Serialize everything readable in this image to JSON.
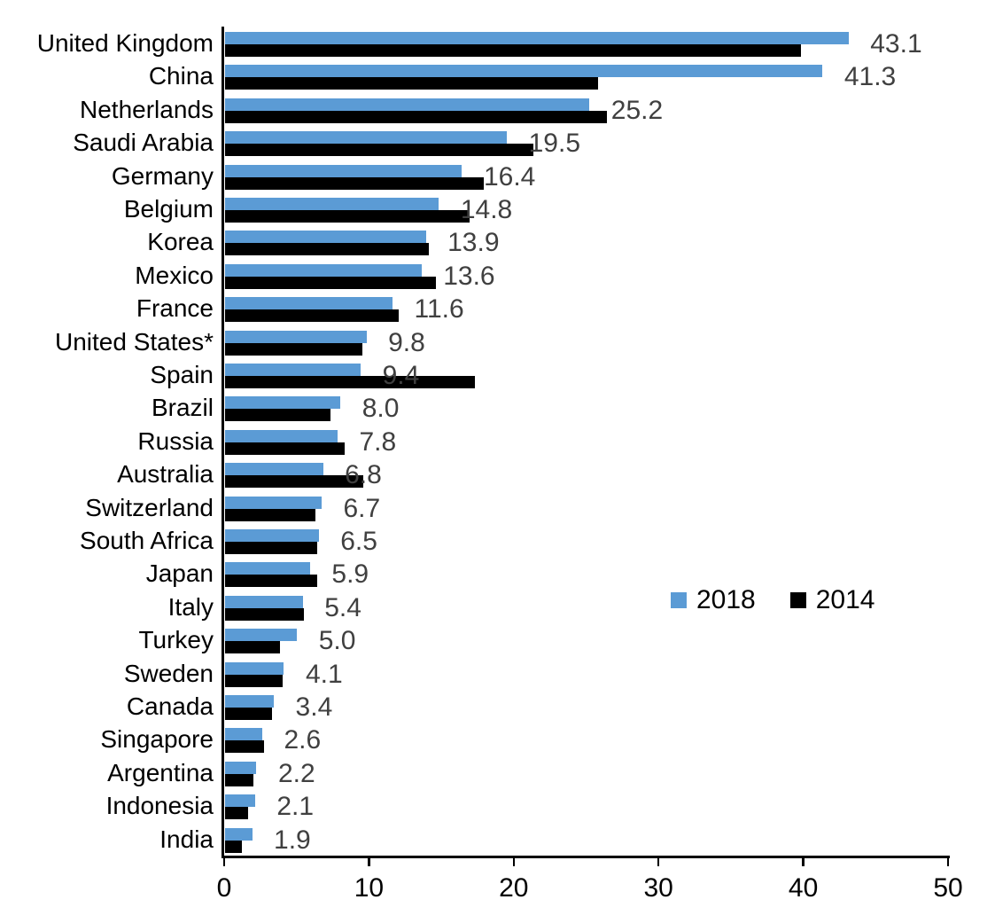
{
  "chart_data": {
    "type": "bar",
    "orientation": "horizontal",
    "title": "",
    "xlabel": "",
    "ylabel": "",
    "xlim": [
      0,
      50
    ],
    "x_ticks": [
      0,
      10,
      20,
      30,
      40,
      50
    ],
    "grid": false,
    "legend_position": "middle-right",
    "data_label_series": "2018",
    "data_label_color": "#404040",
    "categories": [
      "United Kingdom",
      "China",
      "Netherlands",
      "Saudi Arabia",
      "Germany",
      "Belgium",
      "Korea",
      "Mexico",
      "France",
      "United States*",
      "Spain",
      "Brazil",
      "Russia",
      "Australia",
      "Switzerland",
      "South Africa",
      "Japan",
      "Italy",
      "Turkey",
      "Sweden",
      "Canada",
      "Singapore",
      "Argentina",
      "Indonesia",
      "India"
    ],
    "series": [
      {
        "name": "2018",
        "color": "#5B9BD5",
        "values": [
          43.1,
          41.3,
          25.2,
          19.5,
          16.4,
          14.8,
          13.9,
          13.6,
          11.6,
          9.8,
          9.4,
          8.0,
          7.8,
          6.8,
          6.7,
          6.5,
          5.9,
          5.4,
          5.0,
          4.1,
          3.4,
          2.6,
          2.2,
          2.1,
          1.9
        ]
      },
      {
        "name": "2014",
        "color": "#000000",
        "values": [
          39.8,
          25.8,
          26.4,
          21.3,
          17.9,
          16.9,
          14.1,
          14.6,
          12.0,
          9.5,
          17.3,
          7.3,
          8.3,
          9.6,
          6.3,
          6.4,
          6.4,
          5.5,
          3.8,
          4.0,
          3.3,
          2.7,
          2.0,
          1.6,
          1.2
        ]
      }
    ]
  },
  "legend": {
    "items": [
      {
        "label": "2018",
        "color": "#5B9BD5"
      },
      {
        "label": "2014",
        "color": "#000000"
      }
    ]
  }
}
